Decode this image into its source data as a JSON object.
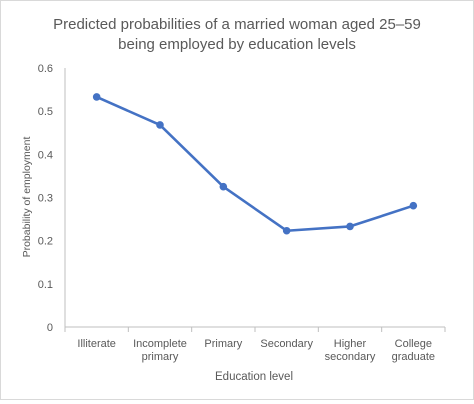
{
  "chart_data": {
    "type": "line",
    "title_lines": [
      "Predicted probabilities of a married woman aged 25–59",
      "being employed by education levels"
    ],
    "xlabel": "Education level",
    "ylabel": "Probability of employment",
    "categories": [
      [
        "Illiterate"
      ],
      [
        "Incomplete",
        "primary"
      ],
      [
        "Primary"
      ],
      [
        "Secondary"
      ],
      [
        "Higher",
        "secondary"
      ],
      [
        "College",
        "graduate"
      ]
    ],
    "series": [
      {
        "values": [
          0.533,
          0.468,
          0.325,
          0.223,
          0.233,
          0.281
        ],
        "color": "#4472c4"
      }
    ],
    "ylim": [
      0,
      0.6
    ],
    "yticks": [
      "0",
      "0.1",
      "0.2",
      "0.3",
      "0.4",
      "0.5",
      "0.6"
    ],
    "grid": false,
    "legend": "none"
  }
}
